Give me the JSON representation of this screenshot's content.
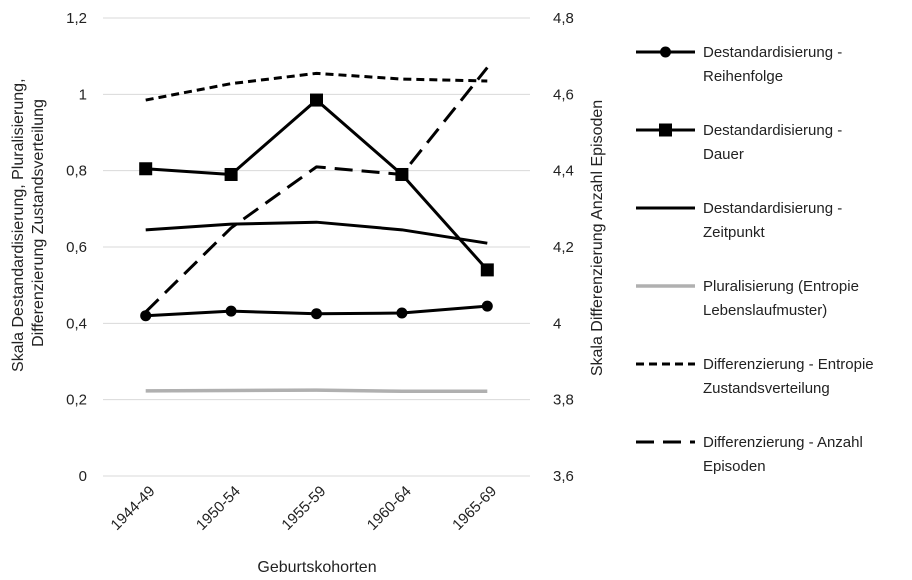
{
  "chart_data": {
    "type": "line",
    "categories": [
      "1944-49",
      "1950-54",
      "1955-59",
      "1960-64",
      "1965-69"
    ],
    "xlabel": "Geburtskohorten",
    "ylabel_left": [
      "Skala Destandardisierung, Pluralisierung,",
      "Differenzierung Zustandsverteilung"
    ],
    "ylabel_right": "Skala Differenzierung Anzahl Episoden",
    "y_left": {
      "min": 0,
      "max": 1.2,
      "ticks": [
        "0",
        "0,2",
        "0,4",
        "0,6",
        "0,8",
        "1",
        "1,2"
      ]
    },
    "y_right": {
      "min": 3.6,
      "max": 4.8,
      "ticks": [
        "3,6",
        "3,8",
        "4",
        "4,2",
        "4,4",
        "4,6",
        "4,8"
      ]
    },
    "grid": true,
    "legend_position": "right",
    "series": [
      {
        "name_lines": [
          "Destandardisierung -",
          "Reihenfolge"
        ],
        "axis": "left",
        "marker": "circle",
        "line": "solid",
        "color": "#000000",
        "values": [
          0.42,
          0.432,
          0.425,
          0.427,
          0.445
        ]
      },
      {
        "name_lines": [
          "Destandardisierung -",
          "Dauer"
        ],
        "axis": "left",
        "marker": "square",
        "line": "solid",
        "color": "#000000",
        "values": [
          0.805,
          0.79,
          0.985,
          0.79,
          0.54
        ]
      },
      {
        "name_lines": [
          "Destandardisierung -",
          "Zeitpunkt"
        ],
        "axis": "left",
        "marker": "none",
        "line": "solid",
        "color": "#000000",
        "values": [
          0.645,
          0.66,
          0.665,
          0.645,
          0.61
        ]
      },
      {
        "name_lines": [
          "Pluralisierung (Entropie",
          "Lebenslaufmuster)"
        ],
        "axis": "left",
        "marker": "none",
        "line": "solid",
        "color": "#b0b0b0",
        "values": [
          0.223,
          0.224,
          0.225,
          0.222,
          0.222
        ]
      },
      {
        "name_lines": [
          "Differenzierung - Entropie",
          "Zustandsverteilung"
        ],
        "axis": "left",
        "marker": "none",
        "line": "short-dash",
        "color": "#000000",
        "values": [
          0.985,
          1.028,
          1.055,
          1.04,
          1.035
        ]
      },
      {
        "name_lines": [
          "Differenzierung - Anzahl",
          "Episoden"
        ],
        "axis": "right",
        "marker": "none",
        "line": "long-dash",
        "color": "#000000",
        "values": [
          4.03,
          4.25,
          4.41,
          4.39,
          4.67
        ]
      }
    ]
  }
}
